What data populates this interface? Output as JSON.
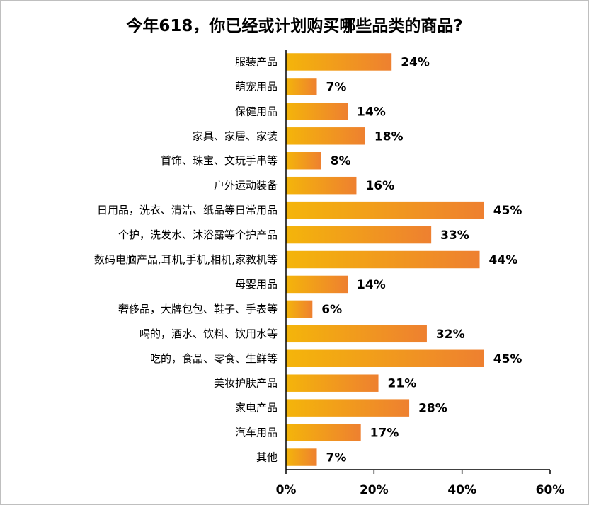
{
  "chart_data": {
    "type": "bar",
    "orientation": "horizontal",
    "title": "今年618，你已经或计划购买哪些品类的商品?",
    "xlabel": "",
    "ylabel": "",
    "categories": [
      "服装产品",
      "萌宠用品",
      "保健用品",
      "家具、家居、家装",
      "首饰、珠宝、文玩手串等",
      "户外运动装备",
      "日用品，洗衣、清洁、纸品等日常用品",
      "个护，洗发水、沐浴露等个护产品",
      "数码电脑产品,耳机,手机,相机,家教机等",
      "母婴用品",
      "奢侈品，大牌包包、鞋子、手表等",
      "喝的，酒水、饮料、饮用水等",
      "吃的，食品、零食、生鲜等",
      "美妆护肤产品",
      "家电产品",
      "汽车用品",
      "其他"
    ],
    "values": [
      24,
      7,
      14,
      18,
      8,
      16,
      45,
      33,
      44,
      14,
      6,
      32,
      45,
      21,
      28,
      17,
      7
    ],
    "value_labels": [
      "24%",
      "7%",
      "14%",
      "18%",
      "8%",
      "16%",
      "45%",
      "33%",
      "44%",
      "14%",
      "6%",
      "32%",
      "45%",
      "21%",
      "28%",
      "17%",
      "7%"
    ],
    "xlim": [
      0,
      60
    ],
    "x_ticks": [
      0,
      20,
      40,
      60
    ],
    "x_tick_labels": [
      "0%",
      "20%",
      "40%",
      "60%"
    ],
    "grid": false,
    "legend": "none",
    "colors": {
      "bar_start": "#F4B50A",
      "bar_end": "#EE8030",
      "axis": "#000000"
    }
  }
}
